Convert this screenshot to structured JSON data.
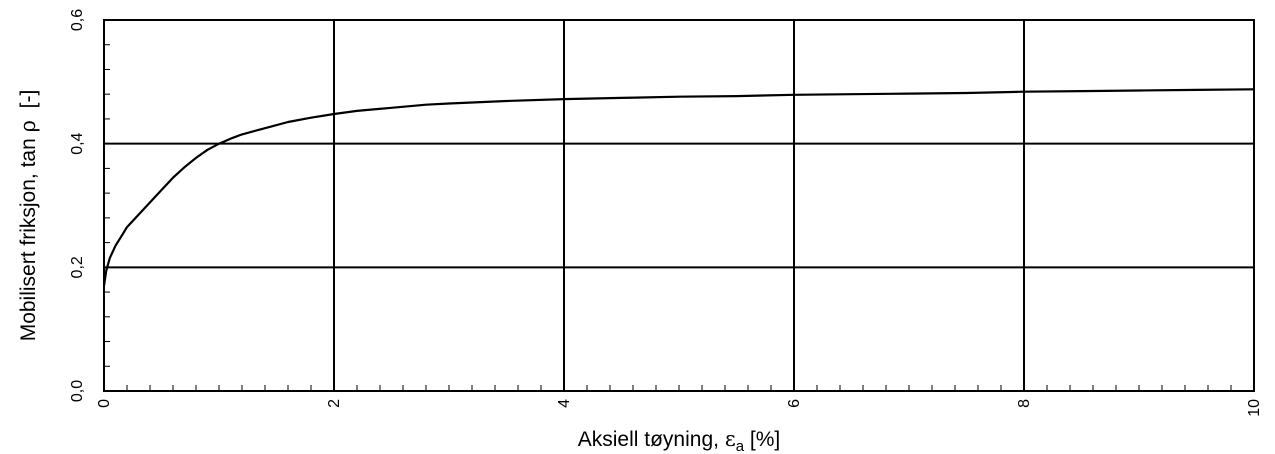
{
  "chart_data": {
    "type": "line",
    "title": "",
    "xlabel": {
      "prefix": "Aksiell tøyning, ",
      "symbol": "ε",
      "subscript": "a",
      "suffix": " [%]"
    },
    "ylabel": {
      "prefix": "Mobilisert friksjon, tan ",
      "symbol": "ρ",
      "suffix": "  [-]"
    },
    "xlim": [
      0,
      10
    ],
    "ylim": [
      0,
      0.6
    ],
    "x_ticks": [
      0,
      2,
      4,
      6,
      8,
      10
    ],
    "x_tick_labels": [
      "0",
      "2",
      "4",
      "6",
      "8",
      "10"
    ],
    "y_ticks": [
      0,
      0.2,
      0.4,
      0.6
    ],
    "y_tick_labels": [
      "0,0",
      "0,2",
      "0,4",
      "0,6"
    ],
    "x_minor_step": 0.2,
    "y_minor_step": 0.04,
    "grid": true,
    "series": [
      {
        "color": "#000000",
        "x": [
          0,
          0.02,
          0.05,
          0.1,
          0.15,
          0.2,
          0.3,
          0.4,
          0.5,
          0.6,
          0.7,
          0.8,
          0.9,
          1.0,
          1.1,
          1.2,
          1.4,
          1.6,
          1.8,
          2.0,
          2.2,
          2.5,
          2.8,
          3.0,
          3.5,
          4.0,
          4.5,
          5.0,
          5.5,
          6.0,
          6.5,
          7.0,
          7.5,
          8.0,
          8.5,
          9.0,
          9.5,
          10.0
        ],
        "y": [
          0.17,
          0.195,
          0.215,
          0.235,
          0.25,
          0.265,
          0.285,
          0.305,
          0.325,
          0.345,
          0.362,
          0.377,
          0.39,
          0.4,
          0.408,
          0.415,
          0.425,
          0.435,
          0.442,
          0.448,
          0.453,
          0.458,
          0.463,
          0.465,
          0.469,
          0.472,
          0.474,
          0.476,
          0.477,
          0.479,
          0.48,
          0.481,
          0.482,
          0.484,
          0.485,
          0.486,
          0.487,
          0.488
        ]
      }
    ]
  }
}
